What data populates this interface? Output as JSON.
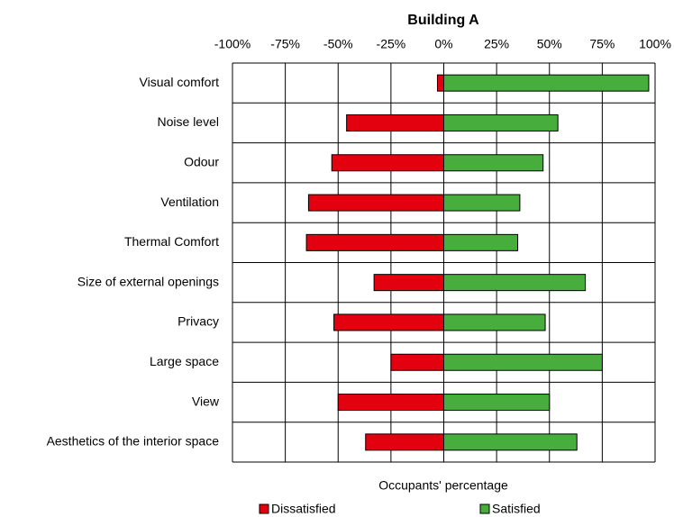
{
  "chart_data": {
    "type": "diverging-bar",
    "title": "Building A",
    "x_label": "Occupants' percentage",
    "categories": [
      "Visual comfort",
      "Noise level",
      "Odour",
      "Ventilation",
      "Thermal Comfort",
      "Size of external openings",
      "Privacy",
      "Large space",
      "View",
      "Aesthetics of the interior space"
    ],
    "series": [
      {
        "name": "Dissatisfied",
        "color": "#e3000f",
        "values": [
          -3,
          -46,
          -53,
          -64,
          -65,
          -33,
          -52,
          -25,
          -50,
          -37
        ]
      },
      {
        "name": "Satisfied",
        "color": "#47ad3c",
        "values": [
          97,
          54,
          47,
          36,
          35,
          67,
          48,
          75,
          50,
          63
        ]
      }
    ],
    "xlim": [
      -100,
      100
    ],
    "xticks": [
      {
        "value": -100,
        "label": "-100%"
      },
      {
        "value": -75,
        "label": "-75%"
      },
      {
        "value": -50,
        "label": "-50%"
      },
      {
        "value": -25,
        "label": "-25%"
      },
      {
        "value": 0,
        "label": "0%"
      },
      {
        "value": 25,
        "label": "25%"
      },
      {
        "value": 50,
        "label": "50%"
      },
      {
        "value": 75,
        "label": "75%"
      },
      {
        "value": 100,
        "label": "100%"
      }
    ],
    "grid": true,
    "legend": "bottom"
  }
}
